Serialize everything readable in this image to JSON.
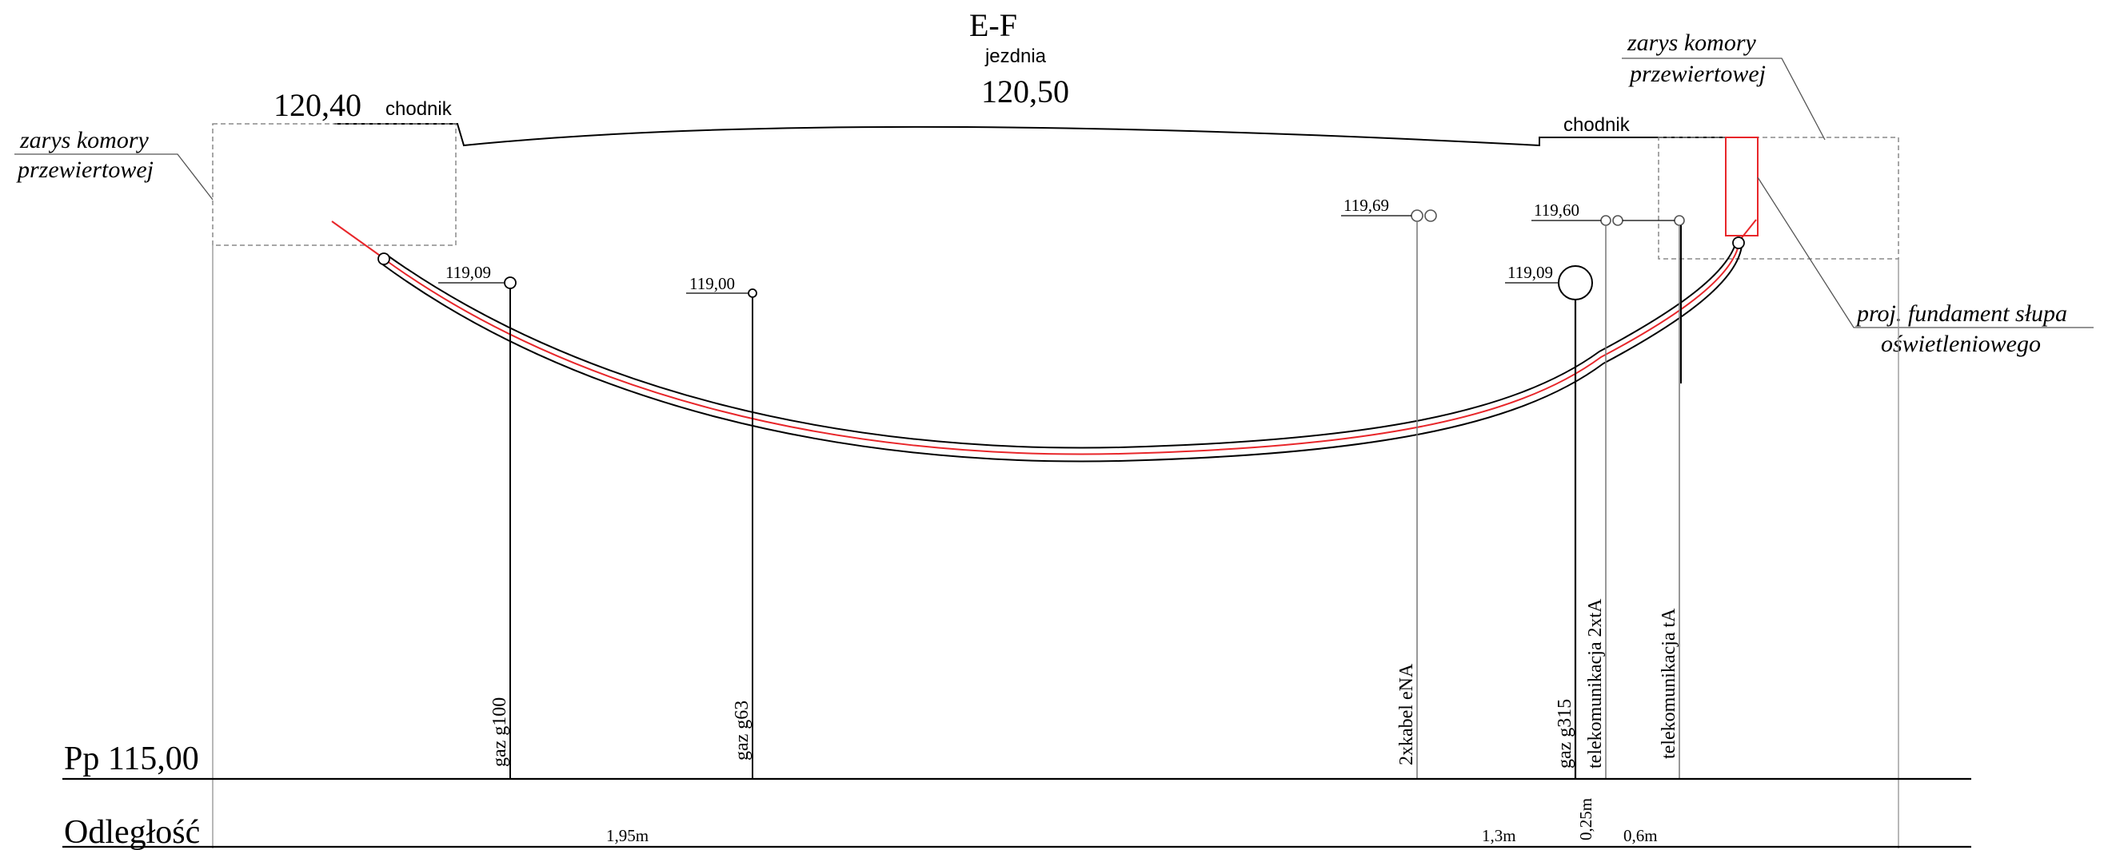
{
  "section": {
    "title": "E-F",
    "road_label": "jezdnia",
    "road_elevation": "120,50",
    "left_sidewalk_elevation": "120,40",
    "left_sidewalk_label": "chodnik",
    "right_sidewalk_label": "chodnik"
  },
  "pit_notes": {
    "left_line1": "zarys komory",
    "left_line2": "przewiertowej",
    "right_line1": "zarys komory",
    "right_line2": "przewiertowej"
  },
  "foundation_note": {
    "line1": "proj. fundament słupa",
    "line2": "oświetleniowego"
  },
  "utilities": [
    {
      "name": "gaz g100",
      "elevation": "119,09"
    },
    {
      "name": "gaz g63",
      "elevation": "119,00"
    },
    {
      "name": "2xkabel eNA",
      "elevation": "119,69"
    },
    {
      "name": "gaz g315",
      "elevation": "119,09"
    },
    {
      "name": "telekomunikacja 2xtA",
      "elevation": "119,60"
    },
    {
      "name": "telekomunikacja tA",
      "elevation": ""
    }
  ],
  "footer": {
    "datum_label": "Pp 115,00",
    "distance_label": "Odległość",
    "distances": [
      "1,95m",
      "1,3m",
      "0,25m",
      "0,6m"
    ]
  },
  "colors": {
    "line": "#000000",
    "thin_line": "#999999",
    "dashed": "#8a8a8a",
    "accent_red": "#e8262a"
  }
}
